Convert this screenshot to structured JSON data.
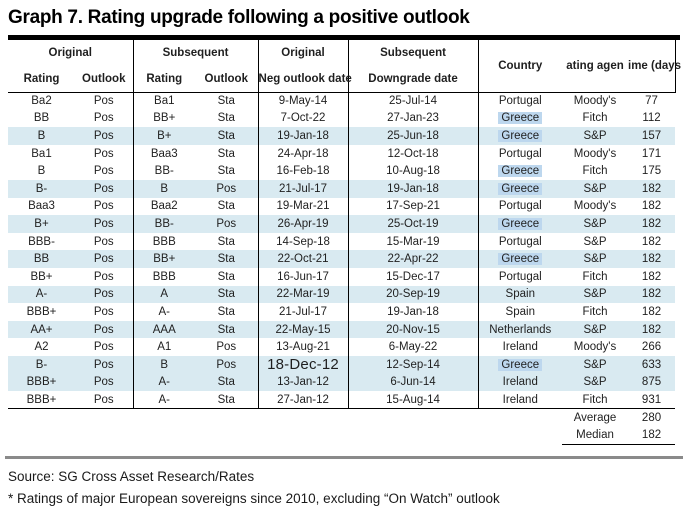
{
  "title": "Graph 7. Rating upgrade following a positive outlook",
  "table": {
    "header": {
      "original_group": "Original",
      "subsequent_group": "Subsequent",
      "rating_label": "Rating",
      "outlook_label": "Outlook",
      "neg_outlook_line1": "Original",
      "neg_outlook_line2": "Neg outlook date",
      "downgrade_line1": "Subsequent",
      "downgrade_line2": "Downgrade date",
      "country_label": "Country",
      "agency_label_clipped": "ating agen",
      "time_label_clipped": "ime (days"
    },
    "rows": [
      {
        "orig_rating": "Ba2",
        "orig_outlook": "Pos",
        "sub_rating": "Ba1",
        "sub_outlook": "Sta",
        "neg_date": "9-May-14",
        "down_date": "25-Jul-14",
        "country": "Portugal",
        "agency": "Moody's",
        "days": "77",
        "shaded": false,
        "country_highlight": false,
        "big_date": false
      },
      {
        "orig_rating": "BB",
        "orig_outlook": "Pos",
        "sub_rating": "BB+",
        "sub_outlook": "Sta",
        "neg_date": "7-Oct-22",
        "down_date": "27-Jan-23",
        "country": "Greece",
        "agency": "Fitch",
        "days": "112",
        "shaded": false,
        "country_highlight": true,
        "big_date": false
      },
      {
        "orig_rating": "B",
        "orig_outlook": "Pos",
        "sub_rating": "B+",
        "sub_outlook": "Sta",
        "neg_date": "19-Jan-18",
        "down_date": "25-Jun-18",
        "country": "Greece",
        "agency": "S&P",
        "days": "157",
        "shaded": true,
        "country_highlight": true,
        "big_date": false
      },
      {
        "orig_rating": "Ba1",
        "orig_outlook": "Pos",
        "sub_rating": "Baa3",
        "sub_outlook": "Sta",
        "neg_date": "24-Apr-18",
        "down_date": "12-Oct-18",
        "country": "Portugal",
        "agency": "Moody's",
        "days": "171",
        "shaded": false,
        "country_highlight": false,
        "big_date": false
      },
      {
        "orig_rating": "B",
        "orig_outlook": "Pos",
        "sub_rating": "BB-",
        "sub_outlook": "Sta",
        "neg_date": "16-Feb-18",
        "down_date": "10-Aug-18",
        "country": "Greece",
        "agency": "Fitch",
        "days": "175",
        "shaded": false,
        "country_highlight": true,
        "big_date": false
      },
      {
        "orig_rating": "B-",
        "orig_outlook": "Pos",
        "sub_rating": "B",
        "sub_outlook": "Pos",
        "neg_date": "21-Jul-17",
        "down_date": "19-Jan-18",
        "country": "Greece",
        "agency": "S&P",
        "days": "182",
        "shaded": true,
        "country_highlight": true,
        "big_date": false
      },
      {
        "orig_rating": "Baa3",
        "orig_outlook": "Pos",
        "sub_rating": "Baa2",
        "sub_outlook": "Sta",
        "neg_date": "19-Mar-21",
        "down_date": "17-Sep-21",
        "country": "Portugal",
        "agency": "Moody's",
        "days": "182",
        "shaded": false,
        "country_highlight": false,
        "big_date": false
      },
      {
        "orig_rating": "B+",
        "orig_outlook": "Pos",
        "sub_rating": "BB-",
        "sub_outlook": "Pos",
        "neg_date": "26-Apr-19",
        "down_date": "25-Oct-19",
        "country": "Greece",
        "agency": "S&P",
        "days": "182",
        "shaded": true,
        "country_highlight": true,
        "big_date": false
      },
      {
        "orig_rating": "BBB-",
        "orig_outlook": "Pos",
        "sub_rating": "BBB",
        "sub_outlook": "Sta",
        "neg_date": "14-Sep-18",
        "down_date": "15-Mar-19",
        "country": "Portugal",
        "agency": "S&P",
        "days": "182",
        "shaded": false,
        "country_highlight": false,
        "big_date": false
      },
      {
        "orig_rating": "BB",
        "orig_outlook": "Pos",
        "sub_rating": "BB+",
        "sub_outlook": "Sta",
        "neg_date": "22-Oct-21",
        "down_date": "22-Apr-22",
        "country": "Greece",
        "agency": "S&P",
        "days": "182",
        "shaded": true,
        "country_highlight": true,
        "big_date": false
      },
      {
        "orig_rating": "BB+",
        "orig_outlook": "Pos",
        "sub_rating": "BBB",
        "sub_outlook": "Sta",
        "neg_date": "16-Jun-17",
        "down_date": "15-Dec-17",
        "country": "Portugal",
        "agency": "Fitch",
        "days": "182",
        "shaded": false,
        "country_highlight": false,
        "big_date": false
      },
      {
        "orig_rating": "A-",
        "orig_outlook": "Pos",
        "sub_rating": "A",
        "sub_outlook": "Sta",
        "neg_date": "22-Mar-19",
        "down_date": "20-Sep-19",
        "country": "Spain",
        "agency": "S&P",
        "days": "182",
        "shaded": true,
        "country_highlight": false,
        "big_date": false
      },
      {
        "orig_rating": "BBB+",
        "orig_outlook": "Pos",
        "sub_rating": "A-",
        "sub_outlook": "Sta",
        "neg_date": "21-Jul-17",
        "down_date": "19-Jan-18",
        "country": "Spain",
        "agency": "Fitch",
        "days": "182",
        "shaded": false,
        "country_highlight": false,
        "big_date": false
      },
      {
        "orig_rating": "AA+",
        "orig_outlook": "Pos",
        "sub_rating": "AAA",
        "sub_outlook": "Sta",
        "neg_date": "22-May-15",
        "down_date": "20-Nov-15",
        "country": "Netherlands",
        "agency": "S&P",
        "days": "182",
        "shaded": true,
        "country_highlight": false,
        "big_date": false
      },
      {
        "orig_rating": "A2",
        "orig_outlook": "Pos",
        "sub_rating": "A1",
        "sub_outlook": "Pos",
        "neg_date": "13-Aug-21",
        "down_date": "6-May-22",
        "country": "Ireland",
        "agency": "Moody's",
        "days": "266",
        "shaded": false,
        "country_highlight": false,
        "big_date": false
      },
      {
        "orig_rating": "B-",
        "orig_outlook": "Pos",
        "sub_rating": "B",
        "sub_outlook": "Pos",
        "neg_date": "18-Dec-12",
        "down_date": "12-Sep-14",
        "country": "Greece",
        "agency": "S&P",
        "days": "633",
        "shaded": true,
        "country_highlight": true,
        "big_date": true
      },
      {
        "orig_rating": "BBB+",
        "orig_outlook": "Pos",
        "sub_rating": "A-",
        "sub_outlook": "Sta",
        "neg_date": "13-Jan-12",
        "down_date": "6-Jun-14",
        "country": "Ireland",
        "agency": "S&P",
        "days": "875",
        "shaded": true,
        "country_highlight": false,
        "big_date": false
      },
      {
        "orig_rating": "BBB+",
        "orig_outlook": "Pos",
        "sub_rating": "A-",
        "sub_outlook": "Sta",
        "neg_date": "27-Jan-12",
        "down_date": "15-Aug-14",
        "country": "Ireland",
        "agency": "Fitch",
        "days": "931",
        "shaded": false,
        "country_highlight": false,
        "big_date": false
      }
    ],
    "summary": {
      "average_label": "Average",
      "average_value": "280",
      "median_label": "Median",
      "median_value": "182"
    }
  },
  "footer": {
    "source": "Source: SG Cross Asset Research/Rates",
    "note": "* Ratings of major European sovereigns since 2010, excluding “On Watch” outlook"
  },
  "colors": {
    "shaded_row": "#d9eaf1",
    "country_highlight": "#bdd7ee",
    "grey_bar": "#8a8a8a",
    "title_bar": "#000000"
  }
}
